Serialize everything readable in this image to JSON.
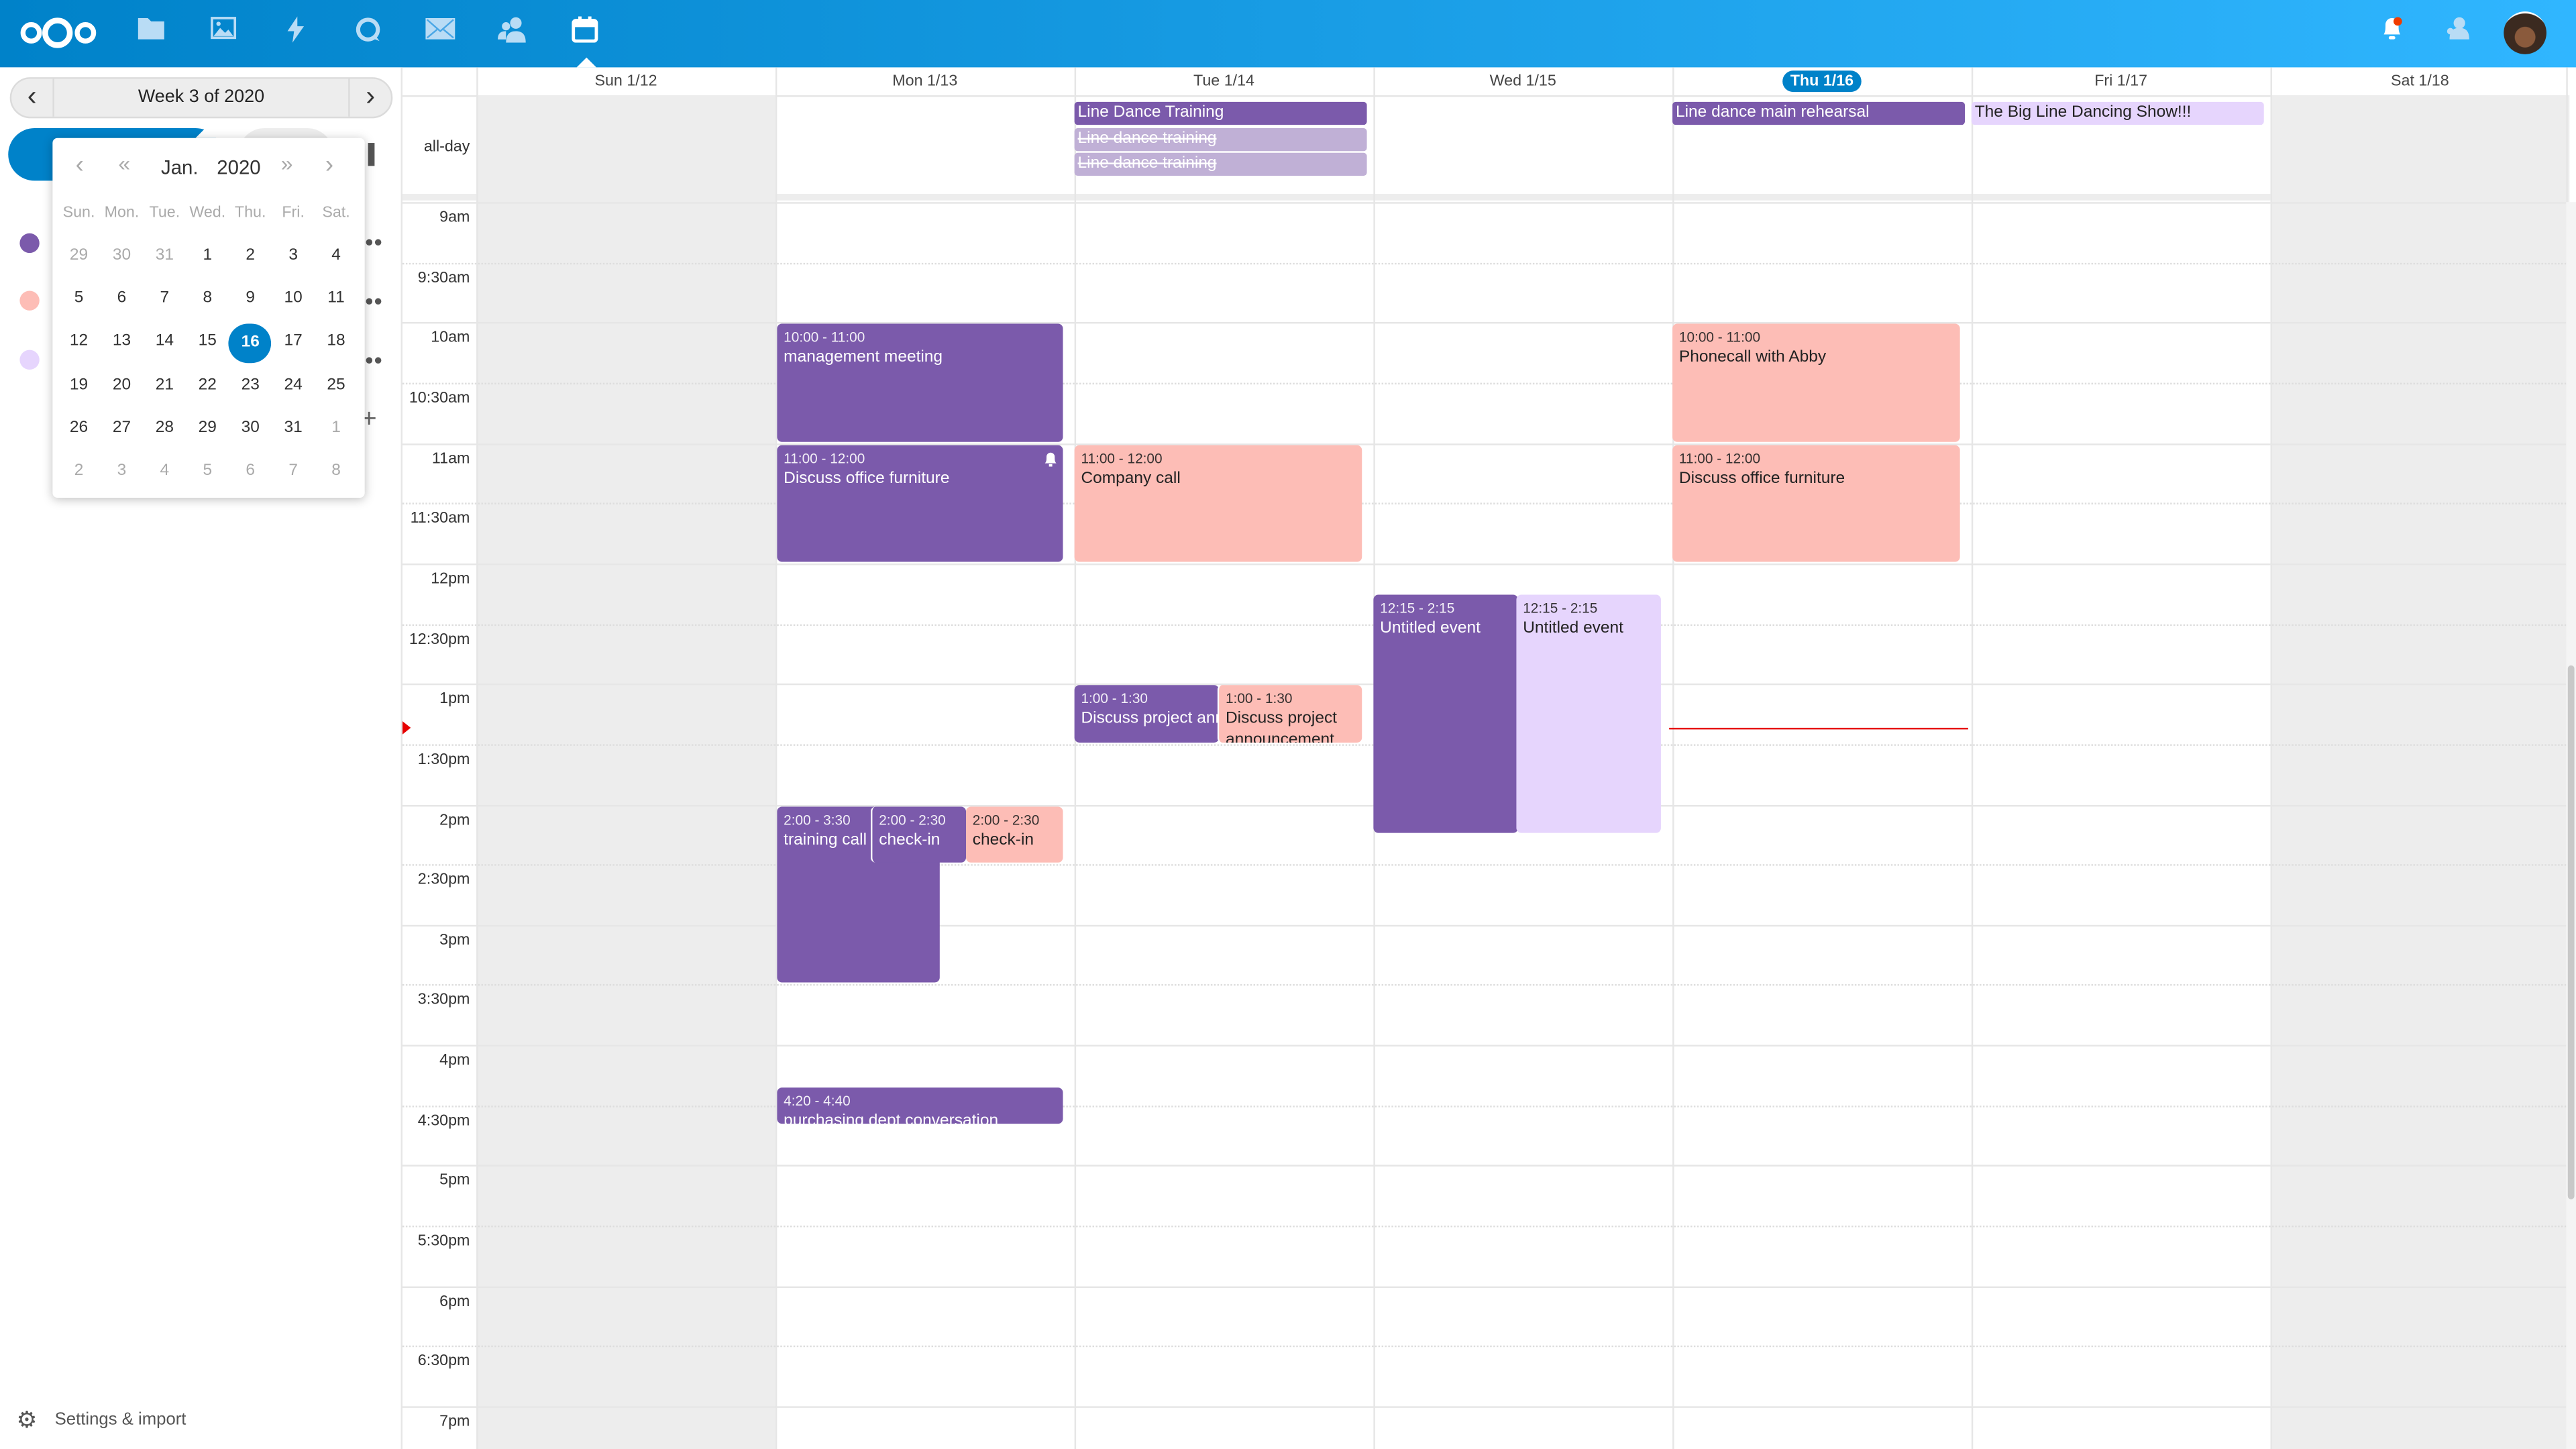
{
  "colors": {
    "header_start": "#0082c9",
    "header_end": "#30b6ff",
    "purple": "#7b5aab",
    "pink": "#fdbdb6",
    "lavender": "#e6d5fd",
    "today": "#0082c9",
    "now_line": "#e60000"
  },
  "header": {
    "apps": [
      "logo-icon",
      "files-icon",
      "photos-icon",
      "activity-icon",
      "talk-icon",
      "mail-icon",
      "contacts-icon",
      "calendar-icon"
    ],
    "right": [
      "notifications-icon",
      "contacts-menu-icon",
      "avatar"
    ]
  },
  "sidebar": {
    "week_label": "Week 3 of 2020",
    "settings_label": "Settings & import",
    "calendar_colors": [
      "#7b5aab",
      "#fdbdb6",
      "#e6d5fd"
    ]
  },
  "datepicker": {
    "month": "Jan.",
    "year": "2020",
    "weekdays": [
      "Sun.",
      "Mon.",
      "Tue.",
      "Wed.",
      "Thu.",
      "Fri.",
      "Sat."
    ],
    "weeks": [
      [
        29,
        30,
        31,
        1,
        2,
        3,
        4
      ],
      [
        5,
        6,
        7,
        8,
        9,
        10,
        11
      ],
      [
        12,
        13,
        14,
        15,
        16,
        17,
        18
      ],
      [
        19,
        20,
        21,
        22,
        23,
        24,
        25
      ],
      [
        26,
        27,
        28,
        29,
        30,
        31,
        1
      ],
      [
        2,
        3,
        4,
        5,
        6,
        7,
        8
      ]
    ],
    "selected": 16
  },
  "grid": {
    "allday_label": "all-day",
    "days": [
      "Sun 1/12",
      "Mon 1/13",
      "Tue 1/14",
      "Wed 1/15",
      "Thu 1/16",
      "Fri 1/17",
      "Sat 1/18"
    ],
    "today_index": 4,
    "times": [
      "9am",
      "9:30am",
      "10am",
      "10:30am",
      "11am",
      "11:30am",
      "12pm",
      "12:30pm",
      "1pm",
      "1:30pm",
      "2pm",
      "2:30pm",
      "3pm",
      "3:30pm",
      "4pm",
      "4:30pm",
      "5pm",
      "5:30pm",
      "6pm",
      "6:30pm",
      "7pm"
    ]
  },
  "allday": [
    {
      "title": "Line Dance Training",
      "day": "Tue 1/14",
      "struck": false
    },
    {
      "title": "Line dance training",
      "day": "Tue 1/14",
      "struck": true
    },
    {
      "title": "Line dance training",
      "day": "Tue 1/14",
      "struck": true
    },
    {
      "title": "Line dance main rehearsal",
      "day": "Thu 1/16",
      "struck": false
    },
    {
      "title": "The Big Line Dancing Show!!!",
      "day": "Fri 1/17",
      "struck": false
    }
  ],
  "events": [
    {
      "time": "10:00 - 11:00",
      "title": "management meeting",
      "day": "Mon 1/13"
    },
    {
      "time": "11:00 - 12:00",
      "title": "Discuss office furniture",
      "day": "Mon 1/13",
      "alarm": true
    },
    {
      "time": "2:00 - 3:30",
      "title": "training call",
      "day": "Mon 1/13"
    },
    {
      "time": "2:00 - 2:30",
      "title": "check-in",
      "day": "Mon 1/13"
    },
    {
      "time": "2:00 - 2:30",
      "title": "check-in",
      "day": "Mon 1/13"
    },
    {
      "time": "4:20 - 4:40",
      "title": "purchasing dept conversation",
      "day": "Mon 1/13"
    },
    {
      "time": "11:00 - 12:00",
      "title": "Company call",
      "day": "Tue 1/14"
    },
    {
      "time": "1:00 - 1:30",
      "title": "Discuss project announcement",
      "day": "Tue 1/14"
    },
    {
      "time": "1:00 - 1:30",
      "title": "Discuss project announcement",
      "day": "Tue 1/14"
    },
    {
      "time": "12:15 - 2:15",
      "title": "Untitled event",
      "day": "Wed 1/15"
    },
    {
      "time": "12:15 - 2:15",
      "title": "Untitled event",
      "day": "Wed 1/15"
    },
    {
      "time": "10:00 - 11:00",
      "title": "Phonecall with Abby",
      "day": "Thu 1/16"
    },
    {
      "time": "11:00 - 12:00",
      "title": "Discuss office furniture",
      "day": "Thu 1/16"
    }
  ]
}
